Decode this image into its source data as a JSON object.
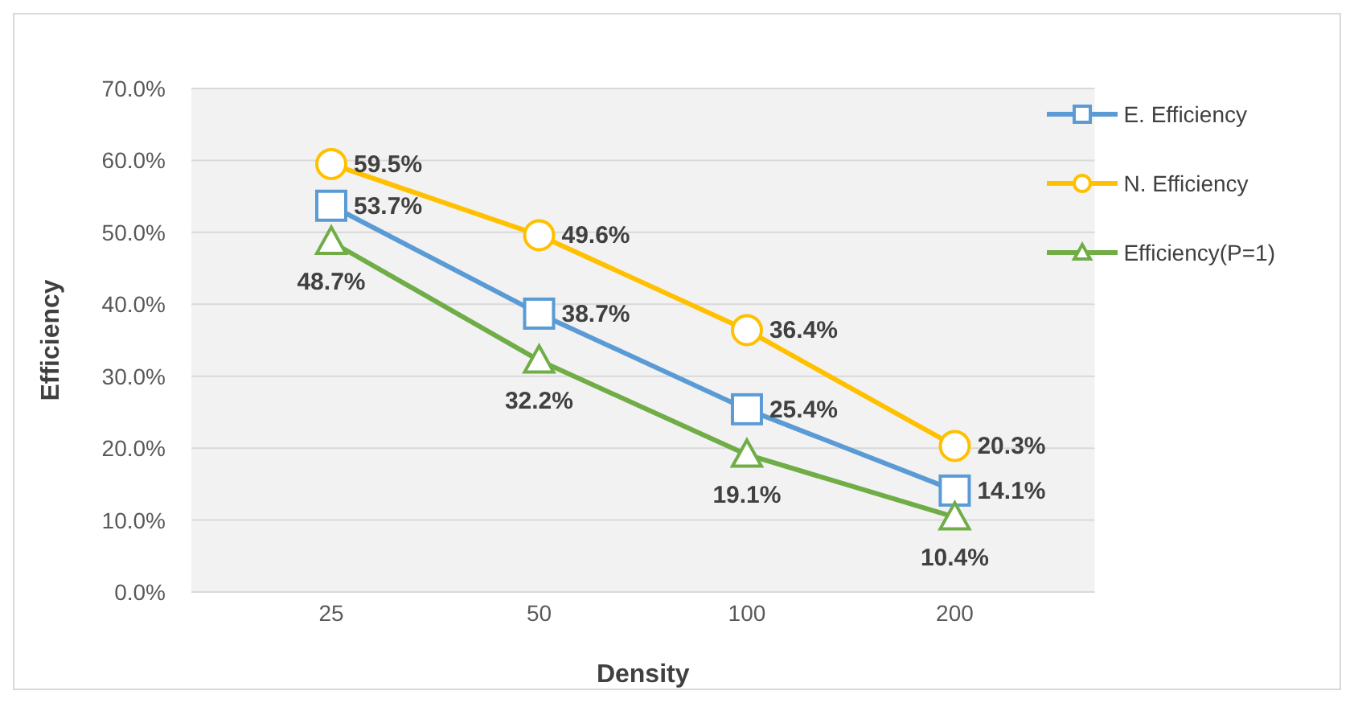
{
  "chart_data": {
    "type": "line",
    "xlabel": "Density",
    "ylabel": "Efficiency",
    "categories": [
      "25",
      "50",
      "100",
      "200"
    ],
    "series": [
      {
        "name": "E. Efficiency",
        "color": "#5b9bd5",
        "marker": "square",
        "values": [
          53.7,
          38.7,
          25.4,
          14.1
        ],
        "value_labels": [
          "53.7%",
          "38.7%",
          "25.4%",
          "14.1%"
        ]
      },
      {
        "name": "N. Efficiency",
        "color": "#ffc000",
        "marker": "circle",
        "values": [
          59.5,
          49.6,
          36.4,
          20.3
        ],
        "value_labels": [
          "59.5%",
          "49.6%",
          "36.4%",
          "20.3%"
        ]
      },
      {
        "name": "Efficiency(P=1)",
        "color": "#70ad47",
        "marker": "triangle",
        "values": [
          48.7,
          32.2,
          19.1,
          10.4
        ],
        "value_labels": [
          "48.7%",
          "32.2%",
          "19.1%",
          "10.4%"
        ]
      }
    ],
    "ylim": [
      0,
      70
    ],
    "yticks": [
      {
        "value": 0,
        "label": "0.0%"
      },
      {
        "value": 10,
        "label": "10.0%"
      },
      {
        "value": 20,
        "label": "20.0%"
      },
      {
        "value": 30,
        "label": "30.0%"
      },
      {
        "value": 40,
        "label": "40.0%"
      },
      {
        "value": 50,
        "label": "50.0%"
      },
      {
        "value": 60,
        "label": "60.0%"
      },
      {
        "value": 70,
        "label": "70.0%"
      }
    ],
    "grid": "y",
    "legend": "top right",
    "line_style": "solid"
  }
}
